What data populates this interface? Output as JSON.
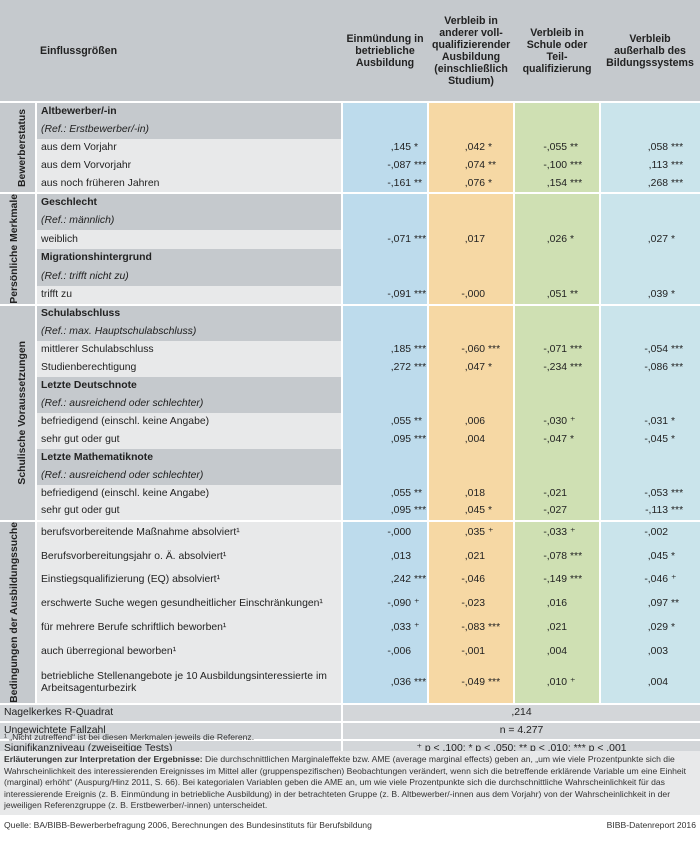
{
  "header": {
    "title": "Einflussgrößen",
    "col1": "Einmündung in betriebliche Ausbildung",
    "col2": "Verbleib in anderer voll-qualifizierender Ausbildung (einschließlich Studium)",
    "col3": "Verbleib in Schule oder Teil-qualifizierung",
    "col4": "Verbleib außerhalb des Bildungssystems"
  },
  "sections": [
    {
      "label": "Bewerberstatus"
    },
    {
      "label": "Persönliche Merkmale"
    },
    {
      "label": "Schulische Voraussetzungen"
    },
    {
      "label": "Bedingungen der Ausbildungssuche"
    }
  ],
  "rows": [
    {
      "label": "Altbewerber/-in"
    },
    {
      "label": "(Ref.: Erstbewerber/-in)"
    },
    {
      "label": "aus dem Vorjahr",
      "v": [
        ",145",
        ",042",
        "-,055",
        ",058"
      ],
      "s": [
        "*",
        "*",
        "**",
        "***"
      ],
      "neg": [
        true,
        false,
        false,
        false
      ]
    },
    {
      "label": "aus dem Vorvorjahr",
      "v": [
        "-,087",
        ",074",
        "-,100",
        ",113"
      ],
      "s": [
        "***",
        "**",
        "***",
        "***"
      ]
    },
    {
      "label": "aus noch früheren Jahren",
      "v": [
        "-,161",
        ",076",
        ",154",
        ",268"
      ],
      "s": [
        "**",
        "*",
        "***",
        "***"
      ]
    },
    {
      "label": "Geschlecht"
    },
    {
      "label": "(Ref.: männlich)"
    },
    {
      "label": "weiblich",
      "v": [
        "-,071",
        ",017",
        ",026",
        ",027"
      ],
      "s": [
        "***",
        "",
        "*",
        "*"
      ]
    },
    {
      "label": "Migrationshintergrund"
    },
    {
      "label": "(Ref.: trifft nicht zu)"
    },
    {
      "label": "trifft zu",
      "v": [
        "-,091",
        "-,000",
        ",051",
        ",039"
      ],
      "s": [
        "***",
        "",
        "**",
        "*"
      ]
    },
    {
      "label": "Schulabschluss"
    },
    {
      "label": "(Ref.: max. Hauptschulabschluss)"
    },
    {
      "label": "mittlerer Schulabschluss",
      "v": [
        ",185",
        "-,060",
        "-,071",
        "-,054"
      ],
      "s": [
        "***",
        "***",
        "***",
        "***"
      ]
    },
    {
      "label": "Studienberechtigung",
      "v": [
        ",272",
        ",047",
        "-,234",
        "-,086"
      ],
      "s": [
        "***",
        "*",
        "***",
        "***"
      ]
    },
    {
      "label": "Letzte Deutschnote"
    },
    {
      "label": "(Ref.: ausreichend oder schlechter)"
    },
    {
      "label": "befriedigend (einschl. keine Angabe)",
      "v": [
        ",055",
        ",006",
        "-,030",
        "-,031"
      ],
      "s": [
        "**",
        "",
        "⁺",
        "*"
      ]
    },
    {
      "label": "sehr gut oder gut",
      "v": [
        ",095",
        ",004",
        "-,047",
        "-,045"
      ],
      "s": [
        "***",
        "",
        "*",
        "*"
      ]
    },
    {
      "label": "Letzte Mathematiknote"
    },
    {
      "label": "(Ref.: ausreichend oder schlechter)"
    },
    {
      "label": "befriedigend (einschl. keine Angabe)",
      "v": [
        ",055",
        ",018",
        "-,021",
        "-,053"
      ],
      "s": [
        "**",
        "",
        "",
        "***"
      ]
    },
    {
      "label": "sehr gut oder gut",
      "v": [
        ",095",
        ",045",
        "-,027",
        "-,113"
      ],
      "s": [
        "***",
        "*",
        "",
        "***"
      ]
    },
    {
      "label": "berufsvorbereitende Maßnahme absolviert¹",
      "v": [
        "-,000",
        ",035",
        "-,033",
        "-,002"
      ],
      "s": [
        "",
        "⁺",
        "⁺",
        ""
      ]
    },
    {
      "label": "Berufsvorbereitungsjahr o. Ä. absolviert¹",
      "v": [
        ",013",
        ",021",
        "-,078",
        ",045"
      ],
      "s": [
        "",
        "",
        "***",
        "*"
      ]
    },
    {
      "label": "Einstiegsqualifizierung (EQ) absolviert¹",
      "v": [
        ",242",
        "-,046",
        "-,149",
        "-,046"
      ],
      "s": [
        "***",
        "",
        "***",
        "⁺"
      ]
    },
    {
      "label": "erschwerte Suche wegen gesundheitlicher Einschränkungen¹",
      "v": [
        "-,090",
        "-,023",
        ",016",
        ",097"
      ],
      "s": [
        "⁺",
        "",
        "",
        "**"
      ]
    },
    {
      "label": "für mehrere Berufe schriftlich beworben¹",
      "v": [
        ",033",
        "-,083",
        ",021",
        ",029"
      ],
      "s": [
        "⁺",
        "***",
        "",
        "*"
      ]
    },
    {
      "label": "auch überregional beworben¹",
      "v": [
        "-,006",
        "-,001",
        ",004",
        ",003"
      ],
      "s": [
        "",
        "",
        "",
        ""
      ]
    },
    {
      "label": "betriebliche Stellenangebote je 10 Ausbildungsinteressierte im Arbeitsagenturbezirk",
      "v": [
        ",036",
        "-,049",
        ",010",
        ",004"
      ],
      "s": [
        "***",
        "***",
        "⁺",
        ""
      ]
    }
  ],
  "stats": [
    {
      "label": "Nagelkerkes R-Quadrat",
      "value": ",214"
    },
    {
      "label": "Ungewichtete Fallzahl",
      "value": "n = 4.277"
    },
    {
      "label": "Signifikanzniveau (zweiseitige Tests)",
      "value": "⁺ p < ,100; * p < ,050; ** p < ,010; *** p < ,001"
    }
  ],
  "footnote": "¹ „Nicht zutreffend“ ist bei diesen Merkmalen jeweils die Referenz.",
  "explanation_title": "Erläuterungen zur Interpretation der Ergebnisse:",
  "explanation_text": "Die durchschnittlichen Marginaleffekte bzw. AME (average marginal effects) geben an, „um wie viele Prozentpunkte sich die Wahrscheinlichkeit des interessierenden Ereignisses im Mittel aller (gruppenspezifischen) Beobachtungen verändert, wenn sich die betreffende erklärende Variable um eine Einheit (marginal) erhöht“ (Auspurg/Hinz 2011, S. 66). Bei kategorialen Variablen geben die AME an, um wie viele Prozentpunkte sich die durchschnittliche Wahrscheinlichkeit für das interessierende Ereignis (z. B. Einmündung in betriebliche Ausbildung) in der betrachteten Gruppe (z. B. Altbewerber/-innen aus dem Vorjahr) von der Wahrscheinlichkeit in der jeweiligen Referenzgruppe (z. B. Erstbewerber/-innen) unterscheidet.",
  "source": "Quelle: BA/BIBB-Bewerberbefragung 2006, Berechnungen des Bundesinstituts für Berufsbildung",
  "brand": "BIBB-Datenreport 2016"
}
